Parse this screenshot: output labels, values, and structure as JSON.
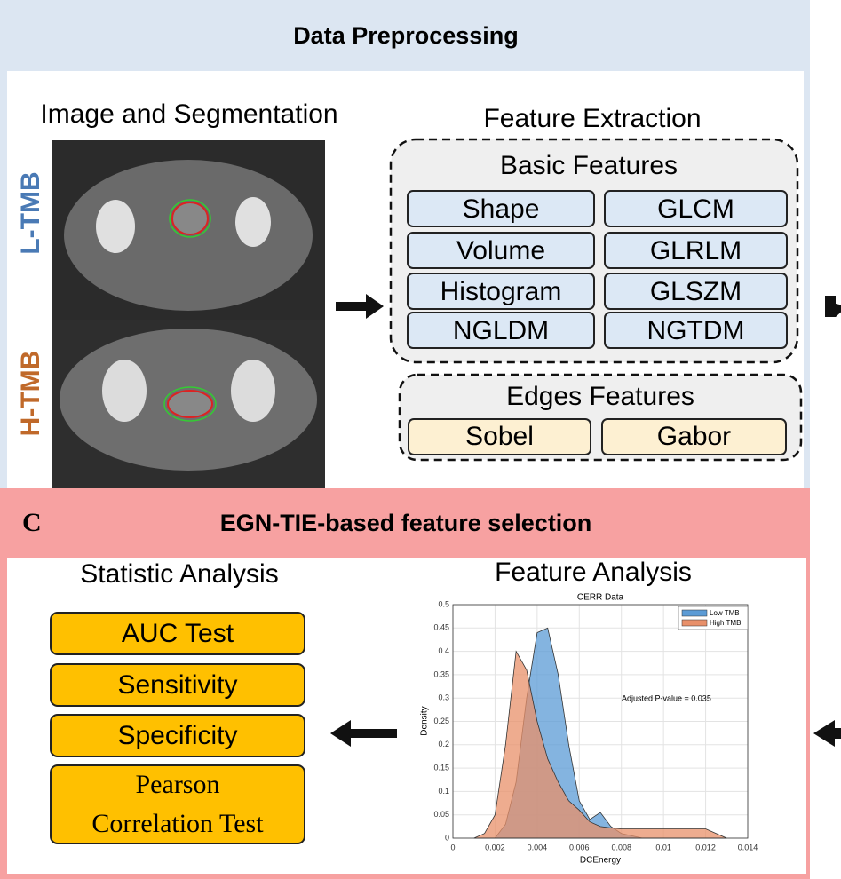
{
  "top_section": {
    "title": "Data Preprocessing",
    "image_panel": {
      "title": "Image and Segmentation",
      "labels": [
        "L-TMB",
        "H-TMB"
      ]
    },
    "feature_extraction": {
      "title": "Feature Extraction",
      "basic": {
        "title": "Basic Features",
        "items": [
          "Shape",
          "GLCM",
          "Volume",
          "GLRLM",
          "Histogram",
          "GLSZM",
          "NGLDM",
          "NGTDM"
        ]
      },
      "edges": {
        "title": "Edges Features",
        "items": [
          "Sobel",
          "Gabor"
        ]
      }
    }
  },
  "section_c": {
    "letter": "C",
    "title": "EGN-TIE-based feature selection",
    "statistic_analysis": {
      "title": "Statistic Analysis",
      "items": [
        [
          "AUC Test"
        ],
        [
          "Sensitivity"
        ],
        [
          "Specificity"
        ],
        [
          "Pearson",
          "Correlation Test"
        ]
      ]
    },
    "feature_analysis": {
      "title": "Feature Analysis"
    }
  },
  "chart_data": {
    "type": "area",
    "title": "CERR Data",
    "x_label": "DCEnergy",
    "y_label": "Density",
    "annotation": "Adjusted P-value = 0.035",
    "x": [
      0.001,
      0.0015,
      0.002,
      0.0025,
      0.003,
      0.0035,
      0.004,
      0.0045,
      0.005,
      0.0055,
      0.006,
      0.0065,
      0.007,
      0.0075,
      0.008,
      0.009,
      0.01,
      0.011,
      0.012,
      0.0125,
      0.013
    ],
    "series": [
      {
        "name": "Low TMB",
        "color": "#5b9bd5",
        "values": [
          0,
          0,
          0,
          0.03,
          0.12,
          0.3,
          0.44,
          0.45,
          0.35,
          0.2,
          0.08,
          0.04,
          0.055,
          0.025,
          0.01,
          0,
          0,
          0,
          0,
          0,
          0
        ]
      },
      {
        "name": "High TMB",
        "color": "#e8906a",
        "values": [
          0,
          0.01,
          0.05,
          0.2,
          0.4,
          0.36,
          0.25,
          0.17,
          0.12,
          0.08,
          0.06,
          0.035,
          0.025,
          0.022,
          0.02,
          0.02,
          0.02,
          0.02,
          0.02,
          0.01,
          0
        ]
      }
    ],
    "xlim": [
      0,
      0.014
    ],
    "xticks": [
      0,
      0.002,
      0.004,
      0.006,
      0.008,
      0.01,
      0.012,
      0.014
    ],
    "ylim": [
      0,
      0.5
    ],
    "yticks": [
      0,
      0.05,
      0.1,
      0.15,
      0.2,
      0.25,
      0.3,
      0.35,
      0.4,
      0.45,
      0.5
    ],
    "grid": true,
    "legend": "top-right"
  }
}
